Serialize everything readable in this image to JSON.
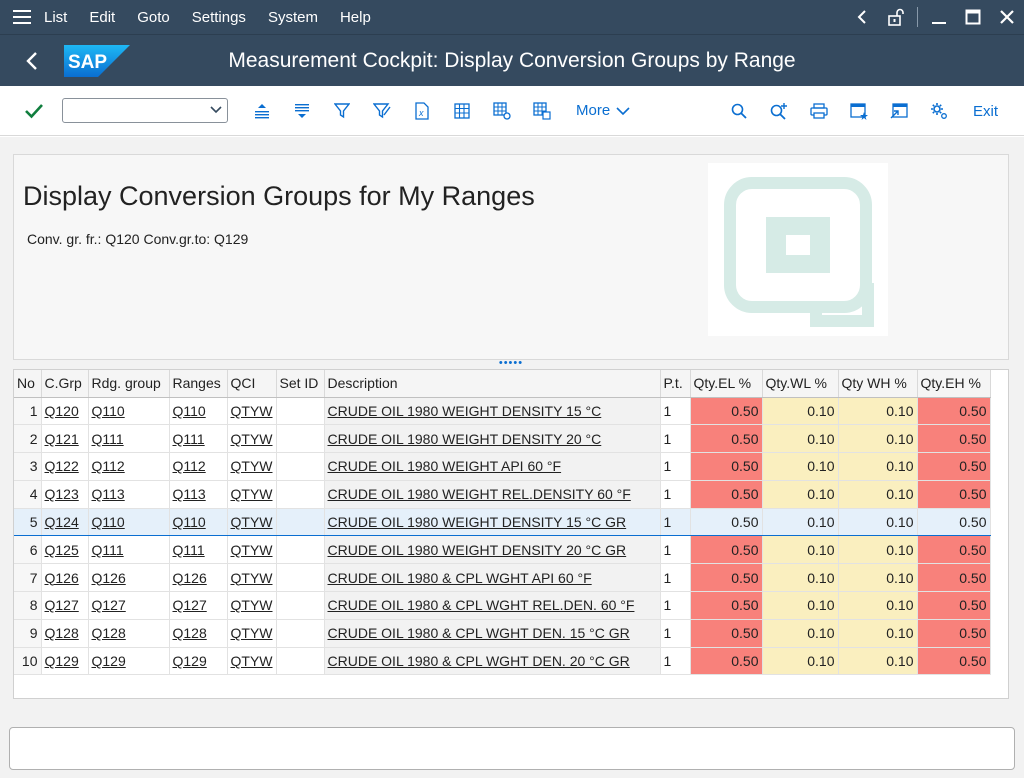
{
  "menu": {
    "items": [
      "List",
      "Edit",
      "Goto",
      "Settings",
      "System",
      "Help"
    ]
  },
  "titlebar": {
    "logo_text": "SAP",
    "title": "Measurement Cockpit: Display Conversion Groups by Range"
  },
  "toolbar": {
    "command_placeholder": "",
    "more_label": "More",
    "exit_label": "Exit"
  },
  "header": {
    "report_title": "Display Conversion Groups for My Ranges",
    "conv_text": "Conv. gr. fr.: Q120 Conv.gr.to: Q129"
  },
  "grid": {
    "columns": [
      "No",
      "C.Grp",
      "Rdg. group",
      "Ranges",
      "QCI",
      "Set ID",
      "Description",
      "P.t.",
      "Qty.EL %",
      "Qty.WL %",
      "Qty WH %",
      "Qty.EH %"
    ],
    "rows": [
      {
        "no": "1",
        "cgrp": "Q120",
        "rdg": "Q110",
        "ranges": "Q110",
        "qci": "QTYW",
        "setid": "",
        "desc": "CRUDE OIL 1980 WEIGHT DENSITY 15 °C",
        "pt": "1",
        "el": "0.50",
        "wl": "0.10",
        "wh": "0.10",
        "eh": "0.50"
      },
      {
        "no": "2",
        "cgrp": "Q121",
        "rdg": "Q111",
        "ranges": "Q111",
        "qci": "QTYW",
        "setid": "",
        "desc": "CRUDE OIL 1980 WEIGHT DENSITY 20 °C",
        "pt": "1",
        "el": "0.50",
        "wl": "0.10",
        "wh": "0.10",
        "eh": "0.50"
      },
      {
        "no": "3",
        "cgrp": "Q122",
        "rdg": "Q112",
        "ranges": "Q112",
        "qci": "QTYW",
        "setid": "",
        "desc": "CRUDE OIL 1980 WEIGHT API 60 °F",
        "pt": "1",
        "el": "0.50",
        "wl": "0.10",
        "wh": "0.10",
        "eh": "0.50"
      },
      {
        "no": "4",
        "cgrp": "Q123",
        "rdg": "Q113",
        "ranges": "Q113",
        "qci": "QTYW",
        "setid": "",
        "desc": "CRUDE OIL 1980 WEIGHT REL.DENSITY 60 °F",
        "pt": "1",
        "el": "0.50",
        "wl": "0.10",
        "wh": "0.10",
        "eh": "0.50"
      },
      {
        "no": "5",
        "cgrp": "Q124",
        "rdg": "Q110",
        "ranges": "Q110",
        "qci": "QTYW",
        "setid": "",
        "desc": "CRUDE OIL 1980 WEIGHT DENSITY 15 °C GR",
        "pt": "1",
        "el": "0.50",
        "wl": "0.10",
        "wh": "0.10",
        "eh": "0.50",
        "selected": true
      },
      {
        "no": "6",
        "cgrp": "Q125",
        "rdg": "Q111",
        "ranges": "Q111",
        "qci": "QTYW",
        "setid": "",
        "desc": "CRUDE OIL 1980 WEIGHT DENSITY 20 °C GR",
        "pt": "1",
        "el": "0.50",
        "wl": "0.10",
        "wh": "0.10",
        "eh": "0.50"
      },
      {
        "no": "7",
        "cgrp": "Q126",
        "rdg": "Q126",
        "ranges": "Q126",
        "qci": "QTYW",
        "setid": "",
        "desc": "CRUDE OIL 1980 & CPL WGHT API 60 °F",
        "pt": "1",
        "el": "0.50",
        "wl": "0.10",
        "wh": "0.10",
        "eh": "0.50"
      },
      {
        "no": "8",
        "cgrp": "Q127",
        "rdg": "Q127",
        "ranges": "Q127",
        "qci": "QTYW",
        "setid": "",
        "desc": "CRUDE OIL 1980 & CPL WGHT REL.DEN. 60 °F",
        "pt": "1",
        "el": "0.50",
        "wl": "0.10",
        "wh": "0.10",
        "eh": "0.50"
      },
      {
        "no": "9",
        "cgrp": "Q128",
        "rdg": "Q128",
        "ranges": "Q128",
        "qci": "QTYW",
        "setid": "",
        "desc": "CRUDE OIL 1980 & CPL WGHT DEN. 15 °C GR",
        "pt": "1",
        "el": "0.50",
        "wl": "0.10",
        "wh": "0.10",
        "eh": "0.50"
      },
      {
        "no": "10",
        "cgrp": "Q129",
        "rdg": "Q129",
        "ranges": "Q129",
        "qci": "QTYW",
        "setid": "",
        "desc": "CRUDE OIL 1980 & CPL WGHT DEN. 20 °C GR",
        "pt": "1",
        "el": "0.50",
        "wl": "0.10",
        "wh": "0.10",
        "eh": "0.50"
      }
    ]
  },
  "colors": {
    "shell": "#354a5f",
    "accent": "#0a6ed1",
    "error_cell": "#f8817b",
    "warning_cell": "#faefbf",
    "selected_row": "#e5f0fa"
  },
  "status": {
    "message": ""
  }
}
